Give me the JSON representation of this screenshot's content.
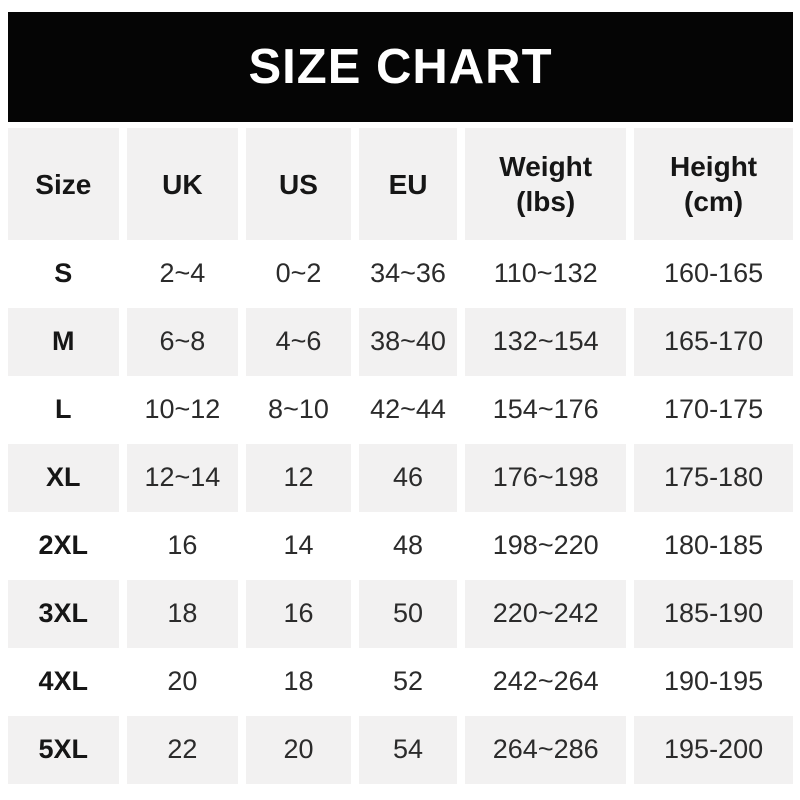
{
  "title": "SIZE CHART",
  "colors": {
    "banner_bg": "#050505",
    "banner_text": "#ffffff",
    "row_alt_bg": "#f2f1f1",
    "text": "#2b2b2b",
    "bold_text": "#161616"
  },
  "header": {
    "size": "Size",
    "uk": "UK",
    "us": "US",
    "eu": "EU",
    "weight_line1": "Weight",
    "weight_line2": "(lbs)",
    "height_line1": "Height",
    "height_line2": "(cm)"
  },
  "chart_data": {
    "type": "table",
    "title": "SIZE CHART",
    "columns": [
      "Size",
      "UK",
      "US",
      "EU",
      "Weight (lbs)",
      "Height (cm)"
    ],
    "rows": [
      [
        "S",
        "2~4",
        "0~2",
        "34~36",
        "110~132",
        "160-165"
      ],
      [
        "M",
        "6~8",
        "4~6",
        "38~40",
        "132~154",
        "165-170"
      ],
      [
        "L",
        "10~12",
        "8~10",
        "42~44",
        "154~176",
        "170-175"
      ],
      [
        "XL",
        "12~14",
        "12",
        "46",
        "176~198",
        "175-180"
      ],
      [
        "2XL",
        "16",
        "14",
        "48",
        "198~220",
        "180-185"
      ],
      [
        "3XL",
        "18",
        "16",
        "50",
        "220~242",
        "185-190"
      ],
      [
        "4XL",
        "20",
        "18",
        "52",
        "242~264",
        "190-195"
      ],
      [
        "5XL",
        "22",
        "20",
        "54",
        "264~286",
        "195-200"
      ]
    ],
    "layout": {
      "alternating_row_shading": true,
      "shaded_rows": [
        "header",
        "M",
        "XL",
        "3XL",
        "5XL"
      ],
      "column_separators": "white gutters"
    }
  }
}
